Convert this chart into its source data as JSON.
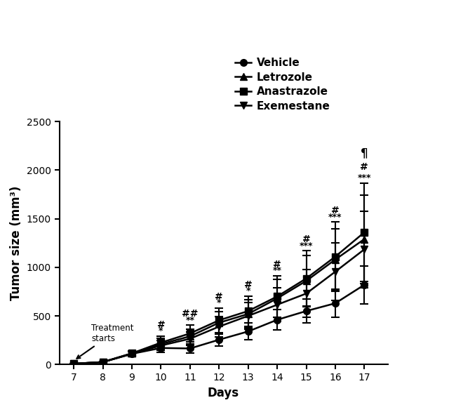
{
  "days": [
    7,
    8,
    9,
    10,
    11,
    12,
    13,
    14,
    15,
    16,
    17
  ],
  "vehicle": [
    8,
    25,
    110,
    170,
    165,
    255,
    340,
    460,
    550,
    630,
    820
  ],
  "letrozole": [
    8,
    25,
    115,
    210,
    290,
    430,
    520,
    680,
    860,
    1080,
    1290
  ],
  "anastrazole": [
    8,
    25,
    115,
    225,
    320,
    455,
    550,
    700,
    885,
    1110,
    1360
  ],
  "exemestane": [
    8,
    25,
    110,
    195,
    265,
    390,
    500,
    615,
    730,
    955,
    1185
  ],
  "vehicle_err": [
    3,
    8,
    25,
    45,
    50,
    65,
    85,
    105,
    125,
    145,
    195
  ],
  "letrozole_err": [
    3,
    8,
    25,
    60,
    75,
    115,
    145,
    195,
    265,
    315,
    455
  ],
  "anastrazole_err": [
    3,
    8,
    25,
    65,
    85,
    125,
    155,
    215,
    285,
    355,
    505
  ],
  "exemestane_err": [
    3,
    8,
    25,
    50,
    70,
    105,
    135,
    175,
    245,
    295,
    395
  ],
  "ann_days": [
    10,
    11,
    12,
    13,
    14,
    15,
    16,
    17
  ],
  "ann_hash": [
    "#",
    "##",
    "#",
    "#",
    "#",
    "#",
    "#",
    "#"
  ],
  "ann_star": [
    "*",
    "**",
    "*",
    "*",
    "**",
    "***",
    "***",
    "***"
  ],
  "ann_pilcrow": [
    null,
    null,
    null,
    null,
    null,
    null,
    null,
    "¶"
  ],
  "treatment_text": "Treatment\nstarts",
  "ylabel": "Tumor size (mm³)",
  "xlabel": "Days",
  "ylim": [
    0,
    2500
  ],
  "yticks": [
    0,
    500,
    1000,
    1500,
    2000,
    2500
  ],
  "legend_labels": [
    "Vehicle",
    "Letrozole",
    "Anastrazole",
    "Exemestane"
  ],
  "legend_markers": [
    "o",
    "^",
    "s",
    "v"
  ],
  "line_color": "black",
  "bg_color": "white"
}
